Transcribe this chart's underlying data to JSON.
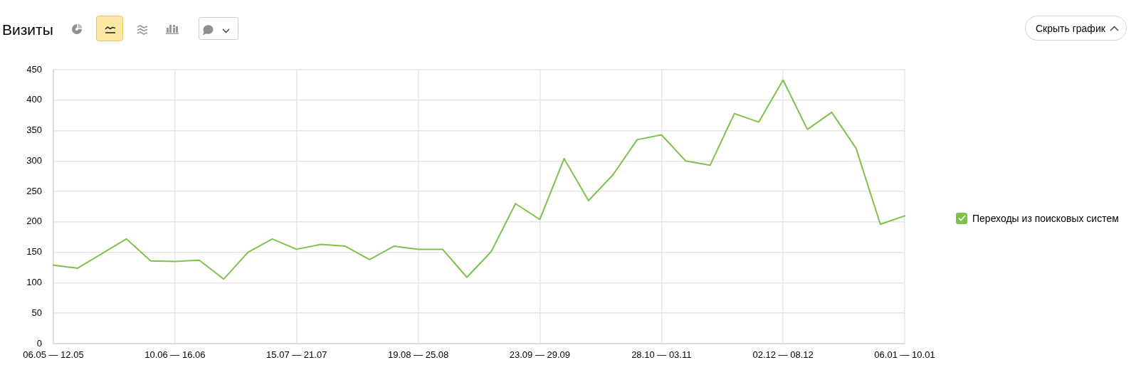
{
  "chart_data": {
    "type": "line",
    "title": "Визиты",
    "categories": [
      "06.05 — 12.05",
      null,
      null,
      null,
      null,
      "10.06 — 16.06",
      null,
      null,
      null,
      null,
      "15.07 — 21.07",
      null,
      null,
      null,
      null,
      "19.08 — 25.08",
      null,
      null,
      null,
      null,
      "23.09 — 29.09",
      null,
      null,
      null,
      null,
      "28.10 — 03.11",
      null,
      null,
      null,
      null,
      "02.12 — 08.12",
      null,
      null,
      null,
      null,
      "06.01 — 10.01"
    ],
    "series": [
      {
        "name": "Переходы из поисковых систем",
        "color": "#7fc24b",
        "values": [
          129,
          124,
          148,
          172,
          136,
          135,
          137,
          106,
          150,
          172,
          155,
          163,
          160,
          138,
          160,
          155,
          155,
          109,
          151,
          230,
          204,
          304,
          235,
          277,
          335,
          343,
          300,
          293,
          378,
          364,
          433,
          352,
          380,
          321,
          196,
          210
        ]
      }
    ],
    "ylim": [
      0,
      450
    ],
    "yticks": [
      0,
      50,
      100,
      150,
      200,
      250,
      300,
      350,
      400,
      450
    ],
    "grid": true,
    "legend": "right",
    "annotations": [
      "Скрыть график"
    ]
  }
}
